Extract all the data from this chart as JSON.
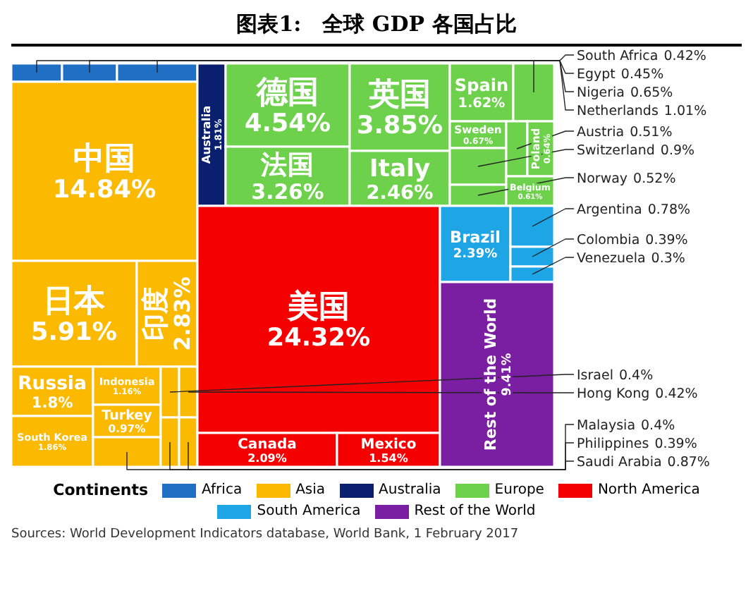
{
  "chart_data": {
    "type": "other",
    "title": "图表1:　全球 GDP 各国占比",
    "legend_title": "Continents",
    "legend": "bottom",
    "categories": [
      "中国",
      "日本",
      "印度",
      "Russia",
      "South Korea",
      "Indonesia",
      "Turkey",
      "Saudi Arabia",
      "Israel",
      "Hong Kong",
      "Malaysia",
      "Philippines",
      "美国",
      "Canada",
      "Mexico",
      "德国",
      "法国",
      "英国",
      "Italy",
      "Spain",
      "Netherlands",
      "Sweden",
      "Switzerland",
      "Norway",
      "Austria",
      "Poland",
      "Belgium",
      "South Africa",
      "Egypt",
      "Nigeria",
      "Australia",
      "Brazil",
      "Argentina",
      "Colombia",
      "Venezuela",
      "Rest of the World"
    ],
    "series": [
      {
        "name": "Africa",
        "color": "#1f6fc5",
        "values": [
          null,
          null,
          null,
          null,
          null,
          null,
          null,
          null,
          null,
          null,
          null,
          null,
          null,
          null,
          null,
          null,
          null,
          null,
          null,
          null,
          null,
          null,
          null,
          null,
          null,
          null,
          null,
          0.42,
          0.45,
          0.65,
          null,
          null,
          null,
          null,
          null,
          null
        ],
        "value_labels": [
          null,
          null,
          null,
          null,
          null,
          null,
          null,
          null,
          null,
          null,
          null,
          null,
          null,
          null,
          null,
          null,
          null,
          null,
          null,
          null,
          null,
          null,
          null,
          null,
          null,
          null,
          null,
          "0.42%",
          "0.45%",
          "0.65%",
          null,
          null,
          null,
          null,
          null,
          null
        ]
      },
      {
        "name": "Asia",
        "color": "#fbb900",
        "values": [
          14.84,
          5.91,
          2.83,
          1.8,
          1.86,
          1.16,
          0.97,
          0.87,
          0.4,
          0.42,
          0.4,
          0.39,
          null,
          null,
          null,
          null,
          null,
          null,
          null,
          null,
          null,
          null,
          null,
          null,
          null,
          null,
          null,
          null,
          null,
          null,
          null,
          null,
          null,
          null,
          null,
          null
        ],
        "value_labels": [
          "14.84%",
          "5.91%",
          "2.83%",
          "1.8%",
          "1.86%",
          "1.16%",
          "0.97%",
          "0.87%",
          "0.4%",
          "0.42%",
          "0.4%",
          "0.39%",
          null,
          null,
          null,
          null,
          null,
          null,
          null,
          null,
          null,
          null,
          null,
          null,
          null,
          null,
          null,
          null,
          null,
          null,
          null,
          null,
          null,
          null,
          null,
          null
        ]
      },
      {
        "name": "Australia",
        "color": "#0a1f6e",
        "values": [
          null,
          null,
          null,
          null,
          null,
          null,
          null,
          null,
          null,
          null,
          null,
          null,
          null,
          null,
          null,
          null,
          null,
          null,
          null,
          null,
          null,
          null,
          null,
          null,
          null,
          null,
          null,
          null,
          null,
          null,
          1.81,
          null,
          null,
          null,
          null,
          null
        ],
        "value_labels": [
          null,
          null,
          null,
          null,
          null,
          null,
          null,
          null,
          null,
          null,
          null,
          null,
          null,
          null,
          null,
          null,
          null,
          null,
          null,
          null,
          null,
          null,
          null,
          null,
          null,
          null,
          null,
          null,
          null,
          null,
          "1.81%",
          null,
          null,
          null,
          null,
          null
        ]
      },
      {
        "name": "Europe",
        "color": "#6dd14b",
        "values": [
          null,
          null,
          null,
          null,
          null,
          null,
          null,
          null,
          null,
          null,
          null,
          null,
          null,
          null,
          null,
          4.54,
          3.26,
          3.85,
          2.46,
          1.62,
          1.01,
          0.67,
          0.9,
          0.52,
          0.51,
          0.64,
          0.61,
          null,
          null,
          null,
          null,
          null,
          null,
          null,
          null,
          null
        ],
        "value_labels": [
          null,
          null,
          null,
          null,
          null,
          null,
          null,
          null,
          null,
          null,
          null,
          null,
          null,
          null,
          null,
          "4.54%",
          "3.26%",
          "3.85%",
          "2.46%",
          "1.62%",
          "1.01%",
          "0.67%",
          "0.9%",
          "0.52%",
          "0.51%",
          "0.64%",
          "0.61%",
          null,
          null,
          null,
          null,
          null,
          null,
          null,
          null,
          null
        ]
      },
      {
        "name": "North America",
        "color": "#f50000",
        "values": [
          null,
          null,
          null,
          null,
          null,
          null,
          null,
          null,
          null,
          null,
          null,
          null,
          24.32,
          2.09,
          1.54,
          null,
          null,
          null,
          null,
          null,
          null,
          null,
          null,
          null,
          null,
          null,
          null,
          null,
          null,
          null,
          null,
          null,
          null,
          null,
          null,
          null
        ],
        "value_labels": [
          null,
          null,
          null,
          null,
          null,
          null,
          null,
          null,
          null,
          null,
          null,
          null,
          "24.32%",
          "2.09%",
          "1.54%",
          null,
          null,
          null,
          null,
          null,
          null,
          null,
          null,
          null,
          null,
          null,
          null,
          null,
          null,
          null,
          null,
          null,
          null,
          null,
          null,
          null
        ]
      },
      {
        "name": "South America",
        "color": "#1ea5e6",
        "values": [
          null,
          null,
          null,
          null,
          null,
          null,
          null,
          null,
          null,
          null,
          null,
          null,
          null,
          null,
          null,
          null,
          null,
          null,
          null,
          null,
          null,
          null,
          null,
          null,
          null,
          null,
          null,
          null,
          null,
          null,
          null,
          2.39,
          0.78,
          0.39,
          0.3,
          null
        ],
        "value_labels": [
          null,
          null,
          null,
          null,
          null,
          null,
          null,
          null,
          null,
          null,
          null,
          null,
          null,
          null,
          null,
          null,
          null,
          null,
          null,
          null,
          null,
          null,
          null,
          null,
          null,
          null,
          null,
          null,
          null,
          null,
          null,
          "2.39%",
          "0.78%",
          "0.39%",
          "0.3%",
          null
        ]
      },
      {
        "name": "Rest of the World",
        "color": "#7a1fa2",
        "values": [
          null,
          null,
          null,
          null,
          null,
          null,
          null,
          null,
          null,
          null,
          null,
          null,
          null,
          null,
          null,
          null,
          null,
          null,
          null,
          null,
          null,
          null,
          null,
          null,
          null,
          null,
          null,
          null,
          null,
          null,
          null,
          null,
          null,
          null,
          null,
          9.41
        ],
        "value_labels": [
          null,
          null,
          null,
          null,
          null,
          null,
          null,
          null,
          null,
          null,
          null,
          null,
          null,
          null,
          null,
          null,
          null,
          null,
          null,
          null,
          null,
          null,
          null,
          null,
          null,
          null,
          null,
          null,
          null,
          null,
          null,
          null,
          null,
          null,
          null,
          "9.41%"
        ]
      }
    ],
    "annotations": [
      "Sources: World Development Indicators database, World Bank, 1 February 2017"
    ]
  }
}
